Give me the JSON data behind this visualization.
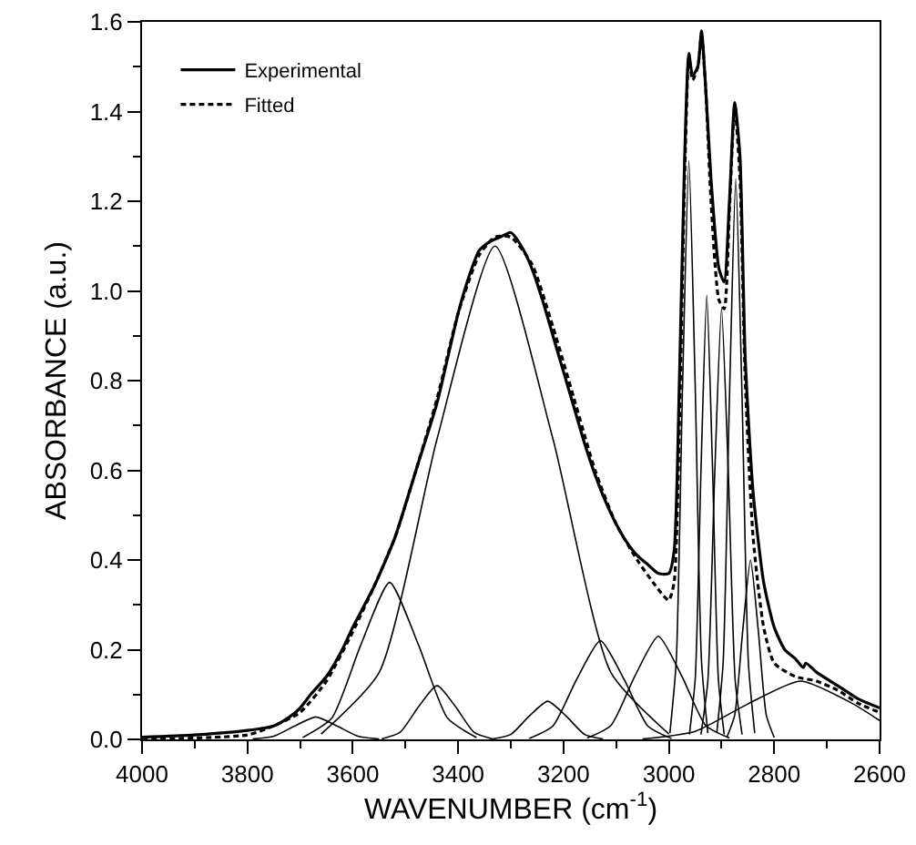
{
  "chart_data": {
    "type": "line",
    "xlabel": "WAVENUMBER (cm$^{-1}$)",
    "ylabel": "ABSORBANCE (a.u.)",
    "xlim": [
      4000,
      2600
    ],
    "xticks": [
      4000,
      3800,
      3600,
      3400,
      3200,
      3000,
      2800,
      2600
    ],
    "ylim": [
      0,
      1.6
    ],
    "yticks": [
      {
        "value": 0,
        "label": "0.0"
      },
      {
        "value": 0.2,
        "label": "0.2"
      },
      {
        "value": 0.4,
        "label": "0.4"
      },
      {
        "value": 0.6,
        "label": "0.6"
      },
      {
        "value": 0.8,
        "label": "0.8"
      },
      {
        "value": 1.0,
        "label": "1.0"
      },
      {
        "value": 1.2,
        "label": "1.2"
      },
      {
        "value": 1.4,
        "label": "1.4"
      },
      {
        "value": 1.6,
        "label": "1.6"
      }
    ],
    "grid": false,
    "legend": "top left",
    "marker": "none",
    "series": [
      {
        "name": "Experimental",
        "color": "#000000",
        "line_style": "solid",
        "x": [
          4000,
          3900,
          3800,
          3750,
          3720,
          3700,
          3680,
          3650,
          3620,
          3600,
          3560,
          3520,
          3480,
          3440,
          3420,
          3400,
          3380,
          3360,
          3340,
          3320,
          3300,
          3280,
          3260,
          3240,
          3220,
          3200,
          3180,
          3160,
          3140,
          3120,
          3100,
          3080,
          3060,
          3040,
          3020,
          3000,
          2990,
          2980,
          2970,
          2962,
          2955,
          2945,
          2938,
          2930,
          2920,
          2905,
          2895,
          2885,
          2875,
          2865,
          2855,
          2840,
          2820,
          2800,
          2780,
          2760,
          2745,
          2740,
          2720,
          2680,
          2640,
          2600
        ],
        "values": [
          0.005,
          0.01,
          0.02,
          0.03,
          0.05,
          0.07,
          0.1,
          0.14,
          0.2,
          0.25,
          0.34,
          0.45,
          0.6,
          0.75,
          0.85,
          0.95,
          1.03,
          1.09,
          1.11,
          1.12,
          1.13,
          1.1,
          1.05,
          0.98,
          0.9,
          0.82,
          0.74,
          0.66,
          0.59,
          0.53,
          0.48,
          0.44,
          0.41,
          0.39,
          0.37,
          0.37,
          0.42,
          0.8,
          1.3,
          1.53,
          1.48,
          1.5,
          1.58,
          1.45,
          1.25,
          1.05,
          1.02,
          1.2,
          1.42,
          1.3,
          0.85,
          0.55,
          0.35,
          0.25,
          0.2,
          0.18,
          0.16,
          0.17,
          0.15,
          0.12,
          0.09,
          0.07
        ]
      },
      {
        "name": "Fitted",
        "color": "#000000",
        "line_style": "dashed",
        "x": [
          4000,
          3800,
          3750,
          3700,
          3650,
          3600,
          3560,
          3520,
          3480,
          3440,
          3400,
          3360,
          3330,
          3300,
          3260,
          3220,
          3180,
          3140,
          3100,
          3060,
          3030,
          3010,
          3000,
          2990,
          2980,
          2970,
          2962,
          2955,
          2945,
          2938,
          2930,
          2920,
          2905,
          2895,
          2885,
          2875,
          2865,
          2855,
          2840,
          2820,
          2800,
          2760,
          2720,
          2680,
          2640,
          2600
        ],
        "values": [
          0,
          0.01,
          0.03,
          0.06,
          0.13,
          0.24,
          0.34,
          0.45,
          0.6,
          0.76,
          0.95,
          1.08,
          1.12,
          1.12,
          1.06,
          0.92,
          0.76,
          0.6,
          0.48,
          0.4,
          0.35,
          0.32,
          0.31,
          0.35,
          0.7,
          1.25,
          1.52,
          1.47,
          1.5,
          1.57,
          1.45,
          1.2,
          0.98,
          0.96,
          1.18,
          1.41,
          1.25,
          0.8,
          0.45,
          0.25,
          0.17,
          0.14,
          0.13,
          0.11,
          0.08,
          0.06
        ]
      },
      {
        "color": "#000000",
        "line_style": "solid",
        "x": [
          3790,
          3750,
          3710,
          3670,
          3630,
          3590,
          3550
        ],
        "values": [
          0.001,
          0.007,
          0.03,
          0.05,
          0.03,
          0.007,
          0.001
        ]
      },
      {
        "color": "#000000",
        "line_style": "solid",
        "x": [
          3695,
          3640,
          3585,
          3530,
          3475,
          3420,
          3365
        ],
        "values": [
          0.004,
          0.047,
          0.21,
          0.35,
          0.21,
          0.047,
          0.004
        ]
      },
      {
        "color": "#000000",
        "line_style": "solid",
        "x": [
          3545,
          3510,
          3475,
          3440,
          3405,
          3370,
          3335
        ],
        "values": [
          0.001,
          0.016,
          0.073,
          0.12,
          0.073,
          0.016,
          0.001
        ]
      },
      {
        "color": "#000000",
        "line_style": "solid",
        "x": [
          3660,
          3550,
          3440,
          3330,
          3220,
          3110,
          3000
        ],
        "values": [
          0.012,
          0.149,
          0.67,
          1.1,
          0.67,
          0.149,
          0.012
        ]
      },
      {
        "color": "#000000",
        "line_style": "solid",
        "x": [
          3335,
          3300,
          3265,
          3230,
          3195,
          3160,
          3125
        ],
        "values": [
          0.001,
          0.011,
          0.052,
          0.085,
          0.052,
          0.011,
          0.001
        ]
      },
      {
        "color": "#000000",
        "line_style": "solid",
        "x": [
          3265,
          3220,
          3175,
          3130,
          3085,
          3040,
          2995
        ],
        "values": [
          0.002,
          0.03,
          0.134,
          0.22,
          0.134,
          0.03,
          0.002
        ]
      },
      {
        "color": "#000000",
        "line_style": "solid",
        "x": [
          3155,
          3110,
          3065,
          3020,
          2975,
          2930,
          2885
        ],
        "values": [
          0.003,
          0.031,
          0.14,
          0.23,
          0.14,
          0.031,
          0.003
        ]
      },
      {
        "color": "#000000",
        "line_style": "solid",
        "x": [
          2998,
          2986,
          2974,
          2962,
          2950,
          2938,
          2926
        ],
        "values": [
          0.014,
          0.174,
          0.79,
          1.29,
          0.79,
          0.174,
          0.014
        ]
      },
      {
        "color": "#000000",
        "line_style": "solid",
        "x": [
          2961,
          2950,
          2939,
          2928,
          2917,
          2906,
          2895
        ],
        "values": [
          0.011,
          0.134,
          0.6,
          0.99,
          0.6,
          0.134,
          0.011
        ]
      },
      {
        "color": "#000000",
        "line_style": "solid",
        "x": [
          2939,
          2926,
          2913,
          2900,
          2887,
          2874,
          2861
        ],
        "values": [
          0.011,
          0.13,
          0.59,
          0.96,
          0.59,
          0.13,
          0.011
        ]
      },
      {
        "color": "#000000",
        "line_style": "solid",
        "x": [
          2909,
          2897,
          2885,
          2873,
          2861,
          2849,
          2837
        ],
        "values": [
          0.014,
          0.17,
          0.76,
          1.25,
          0.76,
          0.17,
          0.014
        ]
      },
      {
        "color": "#000000",
        "line_style": "solid",
        "x": [
          2890,
          2875,
          2860,
          2845,
          2830,
          2815,
          2800
        ],
        "values": [
          0.004,
          0.054,
          0.24,
          0.4,
          0.24,
          0.054,
          0.004
        ]
      },
      {
        "color": "#000000",
        "line_style": "solid",
        "x": [
          3050,
          2950,
          2850,
          2750,
          2650,
          2600
        ],
        "values": [
          0.001,
          0.018,
          0.079,
          0.13,
          0.079,
          0.042
        ]
      }
    ]
  }
}
